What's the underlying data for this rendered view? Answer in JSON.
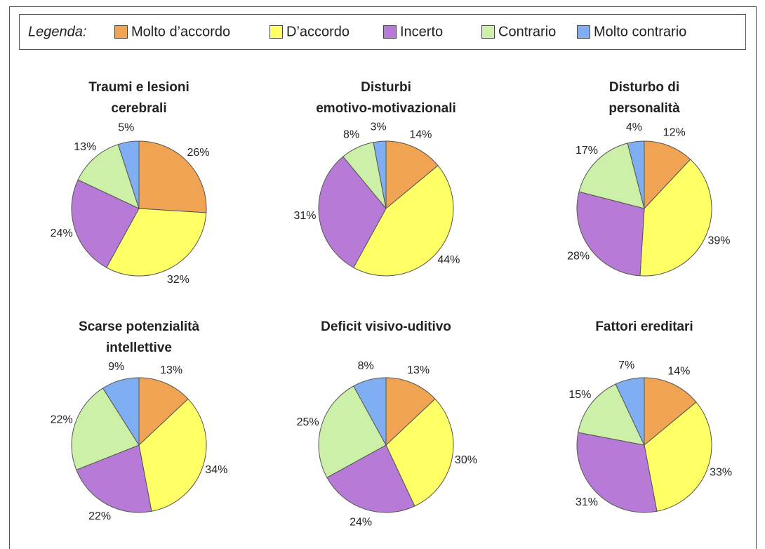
{
  "legend": {
    "title": "Legenda:",
    "items": [
      {
        "name": "Molto d’accordo",
        "color": "#f0a352"
      },
      {
        "name": "D’accordo",
        "color": "#ffff66"
      },
      {
        "name": "Incerto",
        "color": "#b77ad6"
      },
      {
        "name": "Contrario",
        "color": "#cdf0a8"
      },
      {
        "name": "Molto contrario",
        "color": "#80aef2"
      }
    ]
  },
  "chart_data": [
    {
      "type": "pie",
      "title": [
        "Traumi e lesioni",
        "cerebrali"
      ],
      "values": [
        26,
        32,
        24,
        13,
        5
      ],
      "value_labels": [
        "26%",
        "32%",
        "24%",
        "13%",
        "5%"
      ]
    },
    {
      "type": "pie",
      "title": [
        "Disturbi",
        "emotivo-motivazionali"
      ],
      "values": [
        14,
        44,
        31,
        8,
        3
      ],
      "value_labels": [
        "14%",
        "44%",
        "31%",
        "8%",
        "3%"
      ]
    },
    {
      "type": "pie",
      "title": [
        "Disturbo di",
        "personalità"
      ],
      "values": [
        12,
        39,
        28,
        17,
        4
      ],
      "value_labels": [
        "12%",
        "39%",
        "28%",
        "17%",
        "4%"
      ]
    },
    {
      "type": "pie",
      "title": [
        "Scarse potenzialità",
        "intellettive"
      ],
      "values": [
        13,
        34,
        22,
        22,
        9
      ],
      "value_labels": [
        "13%",
        "34%",
        "22%",
        "22%",
        "9%"
      ]
    },
    {
      "type": "pie",
      "title": [
        "Deficit visivo-uditivo"
      ],
      "values": [
        13,
        30,
        24,
        25,
        8
      ],
      "value_labels": [
        "13%",
        "30%",
        "24%",
        "25%",
        "8%"
      ]
    },
    {
      "type": "pie",
      "title": [
        "Fattori ereditari"
      ],
      "values": [
        14,
        33,
        31,
        15,
        7
      ],
      "value_labels": [
        "14%",
        "33%",
        "31%",
        "15%",
        "7%"
      ]
    }
  ]
}
